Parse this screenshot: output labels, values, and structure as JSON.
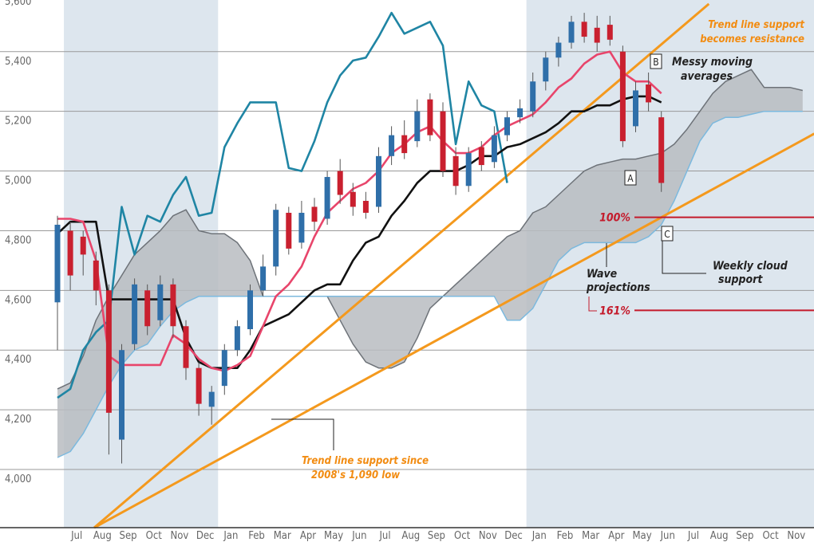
{
  "chart_data": {
    "type": "candlestick",
    "categories": [
      null,
      "Jul",
      null,
      "Aug",
      null,
      "Sep",
      null,
      "Oct",
      null,
      "Nov",
      null,
      "Dec",
      null,
      "Jan",
      null,
      "Feb",
      null,
      "Mar",
      null,
      "Apr",
      null,
      "May",
      null,
      "Jun",
      null,
      "Jul",
      null,
      "Aug",
      null,
      "Sep",
      null,
      "Oct",
      null,
      "Nov",
      null,
      "Dec",
      null,
      "Jan",
      null,
      "Feb",
      null,
      "Mar",
      null,
      "Apr",
      null,
      "May",
      null,
      "Jun",
      null,
      "Jul",
      null,
      "Aug",
      null,
      "Sep",
      null,
      "Oct",
      null,
      "Nov",
      null
    ],
    "ylim": [
      3805,
      5573
    ],
    "yticks": [
      {
        "value": 4000,
        "label": "4,000"
      },
      {
        "value": 4200,
        "label": "4,200"
      },
      {
        "value": 4400,
        "label": "4,400"
      },
      {
        "value": 4600,
        "label": "4,600"
      },
      {
        "value": 4800,
        "label": "4,800"
      },
      {
        "value": 5000,
        "label": "5,000"
      },
      {
        "value": 5200,
        "label": "5,200"
      },
      {
        "value": 5400,
        "label": "5,400"
      },
      {
        "value": 5600,
        "label": "5,600"
      }
    ],
    "grid": true,
    "up_color": "#2f6fa9",
    "down_color": "#c9202f",
    "open": [
      4560,
      4800,
      4780,
      4700,
      4600,
      4100,
      4420,
      4600,
      4500,
      4620,
      4480,
      4340,
      4210,
      4280,
      4400,
      4470,
      4600,
      4680,
      4860,
      4760,
      4880,
      4840,
      5000,
      4930,
      4900,
      4880,
      5050,
      5120,
      5100,
      5240,
      5200,
      5050,
      4950,
      5080,
      5030,
      5120,
      5180,
      5200,
      5300,
      5380,
      5430,
      5500,
      5480,
      5490,
      5400,
      5150,
      5290,
      5180,
      null,
      null,
      null,
      null,
      null,
      null,
      null,
      null,
      null,
      null,
      null
    ],
    "high": [
      4850,
      4830,
      4800,
      4730,
      4620,
      4420,
      4640,
      4620,
      4650,
      4640,
      4500,
      4360,
      4280,
      4420,
      4500,
      4620,
      4720,
      4890,
      4880,
      4900,
      4910,
      5000,
      5040,
      4960,
      4930,
      5080,
      5150,
      5170,
      5240,
      5260,
      5230,
      5080,
      5080,
      5100,
      5150,
      5200,
      5240,
      5330,
      5400,
      5450,
      5520,
      5530,
      5520,
      5520,
      5420,
      5300,
      5330,
      5200,
      null,
      null,
      null,
      null,
      null,
      null,
      null,
      null,
      null,
      null,
      null
    ],
    "low": [
      4400,
      4600,
      4650,
      4550,
      4050,
      4020,
      4400,
      4450,
      4480,
      4440,
      4300,
      4180,
      4150,
      4250,
      4380,
      4450,
      4580,
      4650,
      4720,
      4740,
      4800,
      4820,
      4890,
      4850,
      4840,
      4860,
      5020,
      5040,
      5080,
      5100,
      4980,
      4920,
      4930,
      5000,
      5010,
      5100,
      5160,
      5180,
      5270,
      5350,
      5410,
      5430,
      5400,
      5420,
      5080,
      5130,
      5200,
      4930,
      null,
      null,
      null,
      null,
      null,
      null,
      null,
      null,
      null,
      null,
      null
    ],
    "close": [
      4820,
      4650,
      4720,
      4600,
      4190,
      4400,
      4620,
      4480,
      4620,
      4480,
      4340,
      4220,
      4260,
      4400,
      4480,
      4600,
      4680,
      4870,
      4740,
      4860,
      4830,
      4980,
      4920,
      4880,
      4860,
      5050,
      5120,
      5060,
      5200,
      5120,
      5000,
      4950,
      5060,
      5020,
      5120,
      5180,
      5210,
      5300,
      5380,
      5430,
      5500,
      5450,
      5430,
      5440,
      5100,
      5270,
      5230,
      4960,
      null,
      null,
      null,
      null,
      null,
      null,
      null,
      null,
      null,
      null,
      null
    ],
    "cloud": {
      "fill": "#b8bcc1",
      "span_a": {
        "color": "#6d7278",
        "values": [
          4270,
          4290,
          4380,
          4500,
          4580,
          4650,
          4720,
          4760,
          4800,
          4850,
          4870,
          4800,
          4790,
          4790,
          4760,
          4700,
          4580,
          4580,
          4580,
          4580,
          4580,
          4580,
          4500,
          4420,
          4360,
          4340,
          4340,
          4360,
          4440,
          4540,
          4580,
          4620,
          4660,
          4700,
          4740,
          4780,
          4800,
          4860,
          4880,
          4920,
          4960,
          5000,
          5020,
          5030,
          5040,
          5040,
          5050,
          5060,
          5090,
          5140,
          5200,
          5260,
          5300,
          5320,
          5340,
          5280,
          5280,
          5280,
          5270
        ]
      },
      "span_b": {
        "color": "#7cb9de",
        "values": [
          4040,
          4060,
          4120,
          4200,
          4280,
          4350,
          4400,
          4420,
          4480,
          4530,
          4560,
          4580,
          4580,
          4580,
          4580,
          4580,
          4580,
          4580,
          4580,
          4580,
          4580,
          4580,
          4580,
          4580,
          4580,
          4580,
          4580,
          4580,
          4580,
          4580,
          4580,
          4580,
          4580,
          4580,
          4580,
          4500,
          4500,
          4540,
          4620,
          4700,
          4740,
          4760,
          4760,
          4760,
          4760,
          4760,
          4780,
          4820,
          4900,
          5000,
          5100,
          5160,
          5180,
          5180,
          5190,
          5200,
          5200,
          5200,
          5200
        ]
      }
    },
    "lines": [
      {
        "color": "#1f85a4",
        "values": [
          4240,
          4270,
          4400,
          4460,
          4500,
          4880,
          4720,
          4850,
          4830,
          4920,
          4980,
          4850,
          4860,
          5080,
          5160,
          5230,
          5230,
          5230,
          5010,
          5000,
          5100,
          5230,
          5320,
          5370,
          5380,
          5450,
          5530,
          5460,
          5480,
          5500,
          5420,
          5090,
          5300,
          5220,
          5200,
          4960,
          null,
          null,
          null,
          null,
          null,
          null,
          null,
          null,
          null,
          null,
          null,
          null,
          null,
          null,
          null,
          null,
          null,
          null,
          null,
          null,
          null,
          null,
          null
        ]
      },
      {
        "color": "#111111",
        "values": [
          4790,
          4830,
          4830,
          4830,
          4570,
          4570,
          4570,
          4570,
          4570,
          4570,
          4440,
          4360,
          4340,
          4340,
          4340,
          4400,
          4480,
          4500,
          4520,
          4560,
          4600,
          4620,
          4620,
          4700,
          4760,
          4780,
          4850,
          4900,
          4960,
          5000,
          5000,
          5000,
          5020,
          5050,
          5050,
          5080,
          5090,
          5110,
          5130,
          5160,
          5200,
          5200,
          5220,
          5220,
          5240,
          5250,
          5250,
          5230,
          null,
          null,
          null,
          null,
          null,
          null,
          null,
          null,
          null,
          null,
          null
        ]
      },
      {
        "color": "#e8456b",
        "values": [
          4840,
          4840,
          4830,
          4700,
          4380,
          4350,
          4350,
          4350,
          4350,
          4450,
          4420,
          4370,
          4340,
          4330,
          4350,
          4380,
          4480,
          4580,
          4620,
          4680,
          4780,
          4860,
          4900,
          4940,
          4960,
          5000,
          5060,
          5090,
          5130,
          5150,
          5100,
          5060,
          5060,
          5080,
          5120,
          5150,
          5170,
          5190,
          5230,
          5280,
          5310,
          5360,
          5390,
          5400,
          5330,
          5300,
          5300,
          5260,
          null,
          null,
          null,
          null,
          null,
          null,
          null,
          null,
          null,
          null,
          null
        ]
      }
    ],
    "trend_lines": [
      {
        "color": "#f4991d",
        "x": [
          2.86,
          50.7
        ],
        "y": [
          3805,
          5560
        ]
      },
      {
        "color": "#f4991d",
        "x": [
          2.86,
          58.9
        ],
        "y": [
          3805,
          5125
        ]
      }
    ],
    "projections": [
      {
        "label": "100%",
        "value": 4845,
        "color": "#c41a2b"
      },
      {
        "label": "161%",
        "value": 4533,
        "color": "#c41a2b"
      }
    ],
    "annotations": {
      "resistance": [
        "Trend line support",
        "becomes resistance"
      ],
      "messy": [
        "Messy moving",
        "averages"
      ],
      "wave": [
        "Wave",
        "projections"
      ],
      "cloud_support": [
        "Weekly cloud",
        "support"
      ],
      "support": [
        "Trend line support since",
        "2008's 1,090 low"
      ],
      "points": [
        "A",
        "B",
        "C"
      ]
    }
  }
}
